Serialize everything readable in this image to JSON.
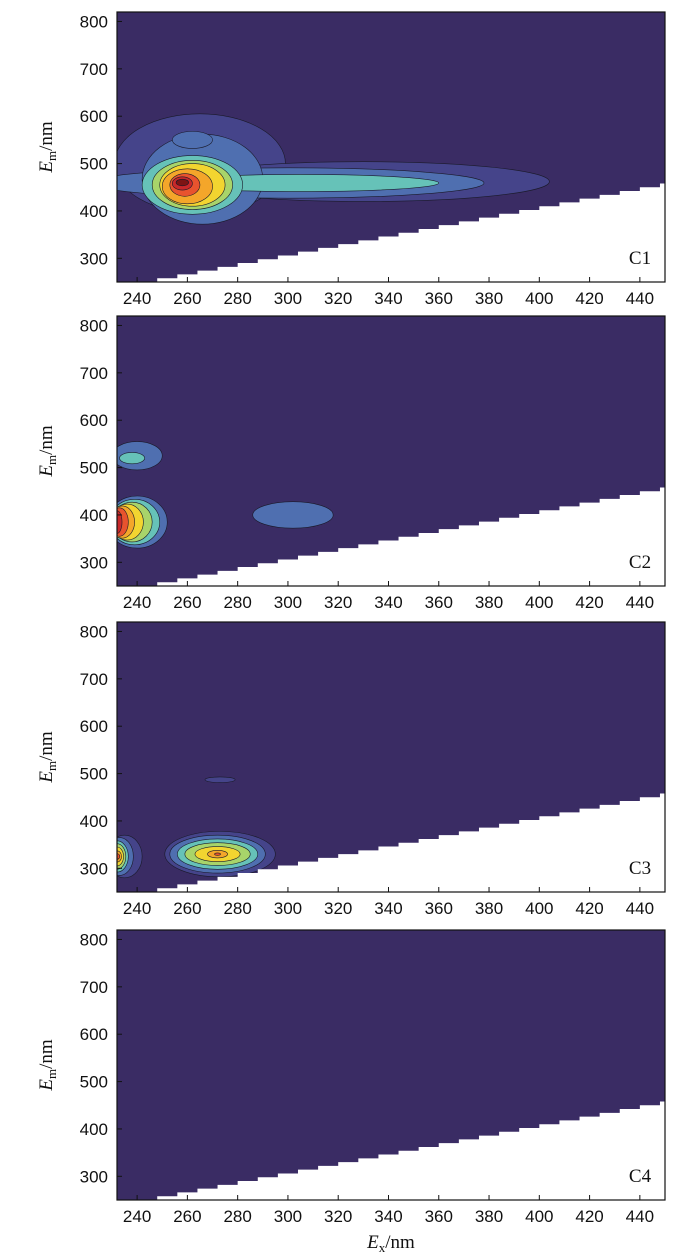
{
  "chart_data": [
    {
      "type": "heatmap",
      "subtype": "contour",
      "panel_label": "C1",
      "xlabel": {
        "main": "E",
        "sub": "x",
        "unit": "/nm"
      },
      "ylabel": {
        "main": "E",
        "sub": "m",
        "unit": "/nm"
      },
      "x_ticks": [
        240,
        260,
        280,
        300,
        320,
        340,
        360,
        380,
        400,
        420,
        440
      ],
      "y_ticks": [
        300,
        400,
        500,
        600,
        700,
        800
      ],
      "xlim": [
        232,
        450
      ],
      "ylim": [
        250,
        820
      ],
      "peaks": [
        {
          "ex": 258,
          "em": 460,
          "level": "max"
        },
        {
          "ex": 300,
          "em": 460,
          "level": "mid-low"
        },
        {
          "ex": 330,
          "em": 460,
          "level": "mid-low"
        }
      ],
      "show_x_tick_labels": true,
      "show_x_label": false
    },
    {
      "type": "heatmap",
      "subtype": "contour",
      "panel_label": "C2",
      "xlabel": {
        "main": "E",
        "sub": "x",
        "unit": "/nm"
      },
      "ylabel": {
        "main": "E",
        "sub": "m",
        "unit": "/nm"
      },
      "x_ticks": [
        240,
        260,
        280,
        300,
        320,
        340,
        360,
        380,
        400,
        420,
        440
      ],
      "y_ticks": [
        300,
        400,
        500,
        600,
        700,
        800
      ],
      "xlim": [
        232,
        450
      ],
      "ylim": [
        250,
        820
      ],
      "peaks": [
        {
          "ex": 232,
          "em": 385,
          "level": "max"
        },
        {
          "ex": 235,
          "em": 520,
          "level": "mid"
        },
        {
          "ex": 302,
          "em": 402,
          "level": "low"
        }
      ],
      "show_x_tick_labels": true,
      "show_x_label": false
    },
    {
      "type": "heatmap",
      "subtype": "contour",
      "panel_label": "C3",
      "xlabel": {
        "main": "E",
        "sub": "x",
        "unit": "/nm"
      },
      "ylabel": {
        "main": "E",
        "sub": "m",
        "unit": "/nm"
      },
      "x_ticks": [
        240,
        260,
        280,
        300,
        320,
        340,
        360,
        380,
        400,
        420,
        440
      ],
      "y_ticks": [
        300,
        400,
        500,
        600,
        700,
        800
      ],
      "xlim": [
        232,
        450
      ],
      "ylim": [
        250,
        820
      ],
      "peaks": [
        {
          "ex": 232,
          "em": 325,
          "level": "max"
        },
        {
          "ex": 272,
          "em": 330,
          "level": "high"
        }
      ],
      "show_x_tick_labels": true,
      "show_x_label": false
    },
    {
      "type": "heatmap",
      "subtype": "contour",
      "panel_label": "C4",
      "xlabel": {
        "main": "E",
        "sub": "x",
        "unit": "/nm"
      },
      "ylabel": {
        "main": "E",
        "sub": "m",
        "unit": "/nm"
      },
      "x_ticks": [
        240,
        260,
        280,
        300,
        320,
        340,
        360,
        380,
        400,
        420,
        440
      ],
      "y_ticks": [
        300,
        400,
        500,
        600,
        700,
        800
      ],
      "xlim": [
        232,
        450
      ],
      "ylim": [
        250,
        820
      ],
      "peaks": [],
      "show_x_tick_labels": true,
      "show_x_label": true
    }
  ],
  "colors": {
    "background": "#3a2c64",
    "level1": "#45448a",
    "level2": "#4f6fb0",
    "level3": "#66c2b8",
    "level4": "#a8d46a",
    "level5": "#f2d530",
    "level6": "#f4a62a",
    "level7": "#e8532e",
    "level8": "#c8282a",
    "level9": "#7d1414",
    "masked": "#ffffff"
  }
}
